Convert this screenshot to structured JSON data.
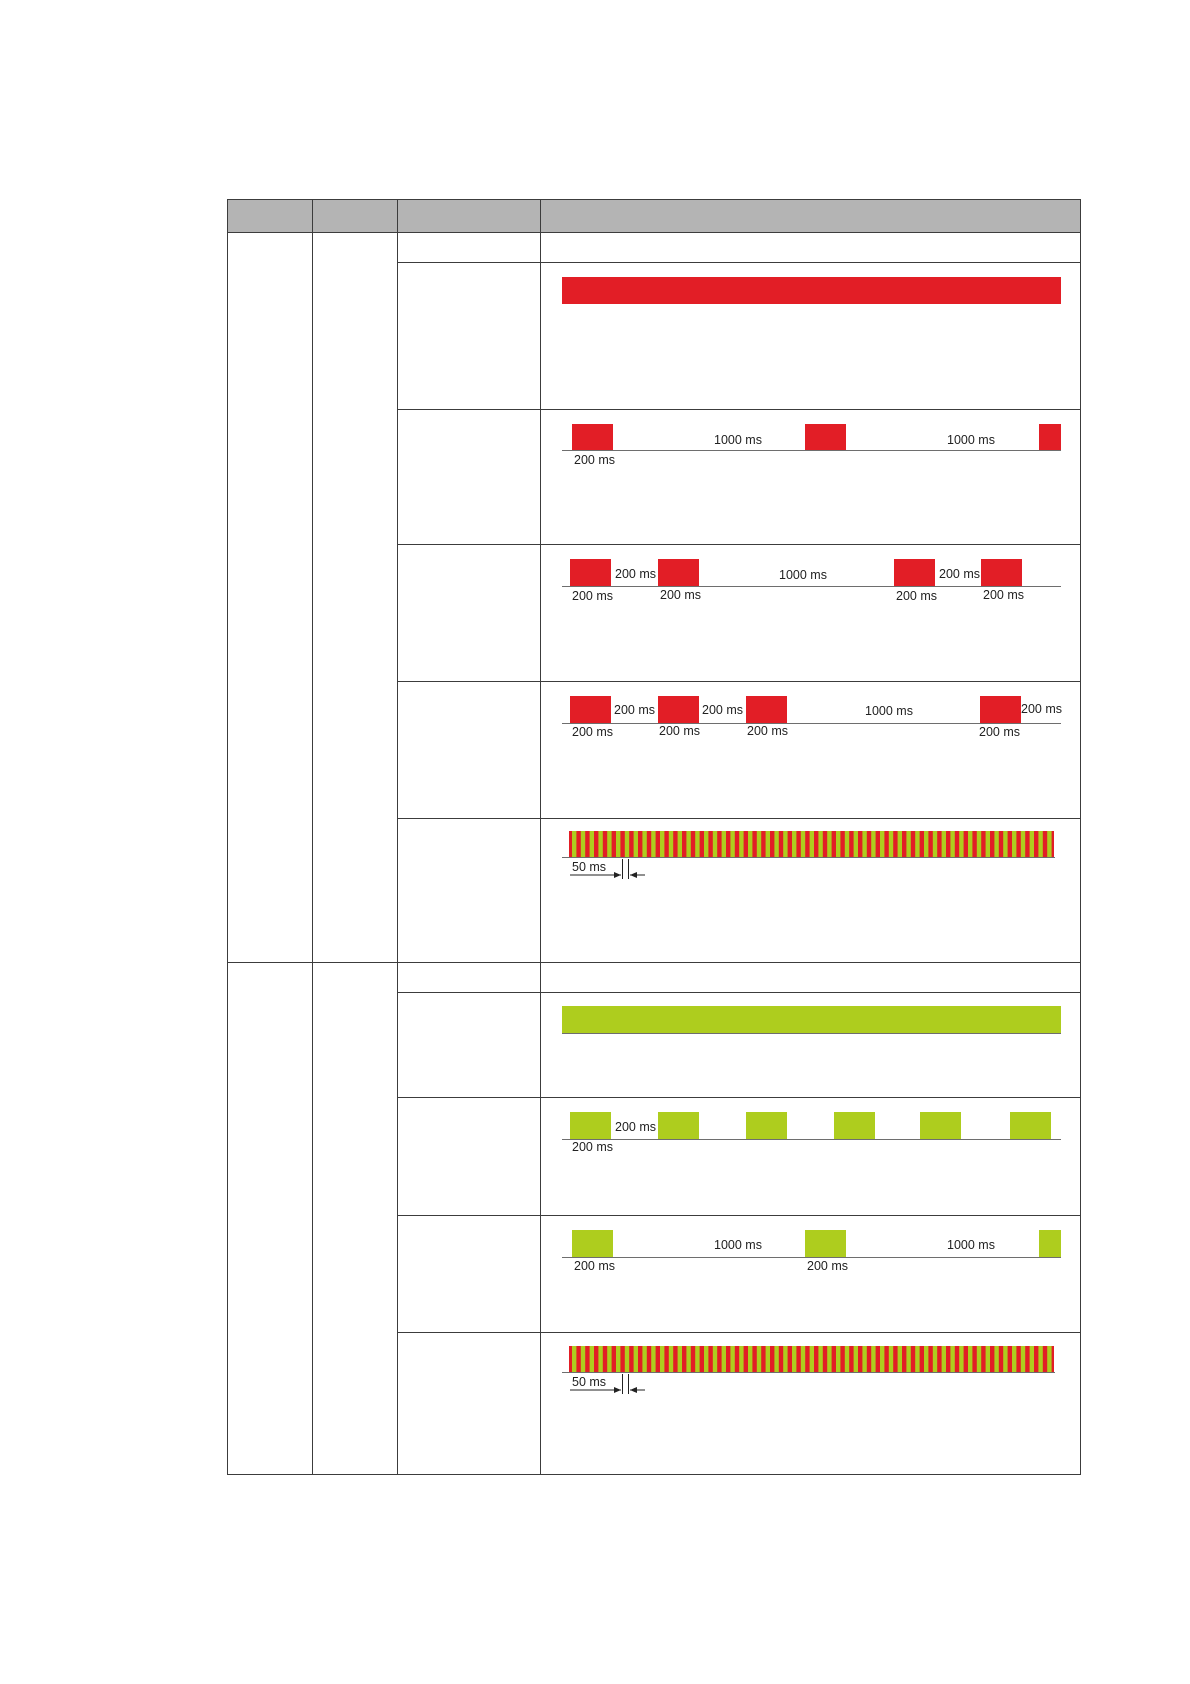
{
  "colors": {
    "header_bg": "#b4b4b4",
    "red": "#e21e26",
    "green": "#aecd1e",
    "rule": "#6e6e6e",
    "border": "#3c3c3c"
  },
  "red_section": {
    "rows": [
      {
        "pattern": "empty"
      },
      {
        "pattern": "steady-on"
      },
      {
        "pattern": "single-flash",
        "labels": [
          "1000 ms",
          "200 ms",
          "1000 ms"
        ]
      },
      {
        "pattern": "double-flash",
        "labels": [
          "200 ms",
          "200 ms",
          "200 ms",
          "1000 ms",
          "200 ms",
          "200 ms",
          "200 ms"
        ]
      },
      {
        "pattern": "triple-flash",
        "labels": [
          "200 ms",
          "200 ms",
          "200 ms",
          "200 ms",
          "200 ms",
          "1000 ms",
          "200 ms",
          "200 ms"
        ]
      },
      {
        "pattern": "red-green-alternating",
        "labels": [
          "50 ms"
        ]
      }
    ]
  },
  "green_section": {
    "rows": [
      {
        "pattern": "empty"
      },
      {
        "pattern": "steady-on"
      },
      {
        "pattern": "fast-blink",
        "labels": [
          "200 ms",
          "200 ms"
        ]
      },
      {
        "pattern": "single-flash",
        "labels": [
          "1000 ms",
          "200 ms",
          "200 ms",
          "1000 ms"
        ]
      },
      {
        "pattern": "red-green-alternating",
        "labels": [
          "50 ms"
        ]
      }
    ]
  }
}
